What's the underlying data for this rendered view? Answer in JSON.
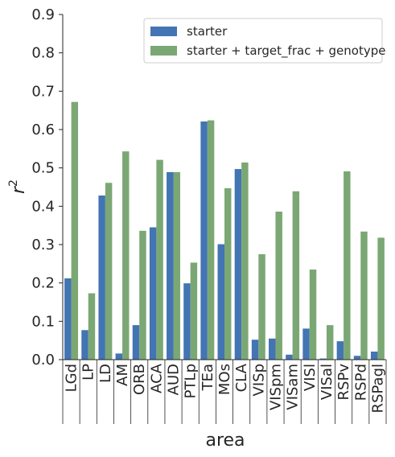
{
  "chart_data": {
    "type": "bar",
    "categories": [
      "LGd",
      "LP",
      "LD",
      "AM",
      "ORB",
      "ACA",
      "AUD",
      "PTLp",
      "TEa",
      "MOs",
      "CLA",
      "VISp",
      "VISpm",
      "VISam",
      "VISl",
      "VISal",
      "RSPv",
      "RSPd",
      "RSPagl"
    ],
    "series": [
      {
        "name": "starter",
        "color": "#4374b3",
        "values": [
          0.212,
          0.077,
          0.428,
          0.016,
          0.09,
          0.345,
          0.489,
          0.199,
          0.621,
          0.301,
          0.497,
          0.052,
          0.055,
          0.013,
          0.081,
          0.003,
          0.048,
          0.01,
          0.021
        ]
      },
      {
        "name": "starter + target_frac + genotype",
        "color": "#7ba774",
        "values": [
          0.672,
          0.173,
          0.461,
          0.543,
          0.336,
          0.521,
          0.489,
          0.253,
          0.624,
          0.447,
          0.514,
          0.275,
          0.386,
          0.439,
          0.235,
          0.09,
          0.491,
          0.334,
          0.318
        ]
      }
    ],
    "xlabel": "area",
    "ylabel": "r",
    "ylabel_superscript": "2",
    "ylim": [
      0,
      0.9
    ],
    "yticks": [
      "0.0",
      "0.1",
      "0.2",
      "0.3",
      "0.4",
      "0.5",
      "0.6",
      "0.7",
      "0.8",
      "0.9"
    ],
    "grid": false,
    "legend_position": "top-right"
  }
}
